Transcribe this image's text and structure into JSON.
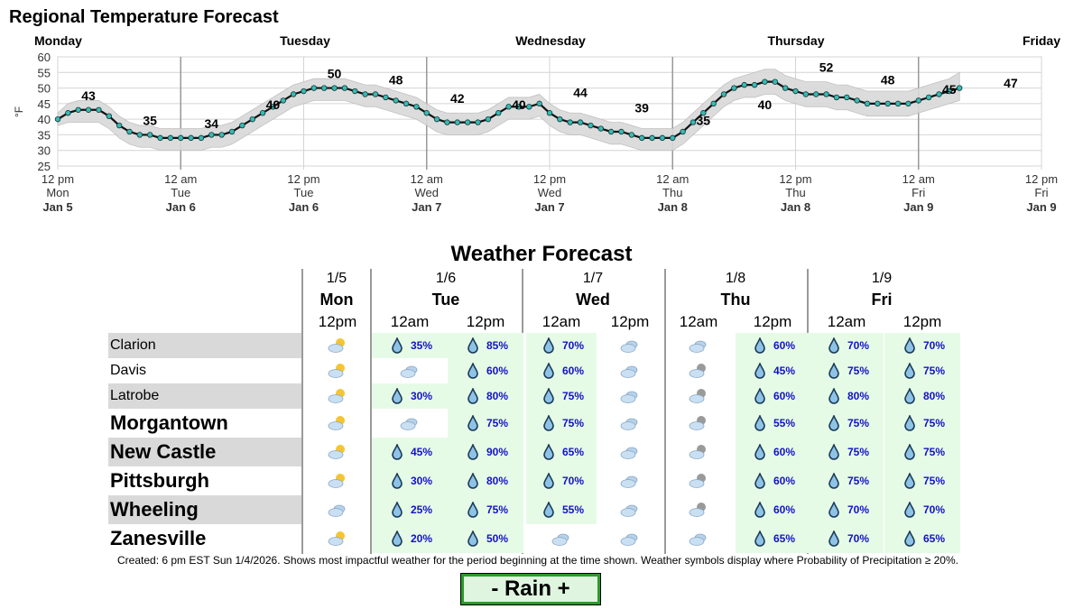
{
  "colors": {
    "band": "#d9d9d9",
    "line": "#111111",
    "point": "#3bb9b4",
    "green_cell": "#e6fbe6",
    "grey_row": "#d9d9d9",
    "pop_text": "#1212c8",
    "legend_border": "#2b9a2b"
  },
  "chart_data": {
    "type": "line",
    "title": "Regional Temperature Forecast",
    "ylabel": "°F",
    "ylim": [
      25,
      60
    ],
    "yticks": [
      25,
      30,
      35,
      40,
      45,
      50,
      55,
      60
    ],
    "grid": true,
    "day_labels": [
      "Monday",
      "Tuesday",
      "Wednesday",
      "Thursday",
      "Friday"
    ],
    "x_ticks": [
      {
        "hours": 0,
        "time": "12 pm",
        "day": "Mon",
        "date": "Jan 5"
      },
      {
        "hours": 12,
        "time": "12 am",
        "day": "Tue",
        "date": "Jan 6"
      },
      {
        "hours": 24,
        "time": "12 pm",
        "day": "Tue",
        "date": "Jan 6"
      },
      {
        "hours": 36,
        "time": "12 am",
        "day": "Wed",
        "date": "Jan 7"
      },
      {
        "hours": 48,
        "time": "12 pm",
        "day": "Wed",
        "date": "Jan 7"
      },
      {
        "hours": 60,
        "time": "12 am",
        "day": "Thu",
        "date": "Jan 8"
      },
      {
        "hours": 72,
        "time": "12 pm",
        "day": "Thu",
        "date": "Jan 8"
      },
      {
        "hours": 84,
        "time": "12 am",
        "day": "Fri",
        "date": "Jan 9"
      },
      {
        "hours": 96,
        "time": "12 pm",
        "day": "Fri",
        "date": "Jan 9"
      }
    ],
    "series": [
      {
        "values": [
          40,
          42,
          43,
          43,
          43,
          41,
          38,
          36,
          35,
          35,
          34,
          34,
          34,
          34,
          34,
          35,
          35,
          36,
          38,
          40,
          42,
          44,
          46,
          48,
          49,
          50,
          50,
          50,
          50,
          49,
          48,
          48,
          47,
          46,
          45,
          44,
          42,
          40,
          39,
          39,
          39,
          39,
          40,
          42,
          44,
          44,
          44,
          45,
          42,
          40,
          39,
          39,
          38,
          37,
          36,
          36,
          35,
          34,
          34,
          34,
          34,
          36,
          39,
          42,
          45,
          48,
          50,
          51,
          51,
          52,
          52,
          50,
          49,
          48,
          48,
          48,
          47,
          47,
          46,
          45,
          45,
          45,
          45,
          45,
          46,
          47,
          48,
          49,
          50
        ]
      }
    ],
    "band_upper": [
      42,
      45,
      46,
      46,
      46,
      44,
      41,
      39,
      38,
      38,
      37,
      37,
      37,
      37,
      37,
      38,
      38,
      39,
      41,
      43,
      45,
      47,
      49,
      51,
      52,
      53,
      53,
      53,
      53,
      52,
      51,
      51,
      50,
      49,
      48,
      47,
      45,
      43,
      42,
      42,
      42,
      42,
      43,
      45,
      47,
      47,
      47,
      48,
      45,
      43,
      42,
      42,
      41,
      40,
      39,
      39,
      38,
      37,
      37,
      37,
      37,
      39,
      42,
      45,
      48,
      51,
      53,
      54,
      55,
      56,
      56,
      54,
      53,
      52,
      52,
      52,
      51,
      51,
      50,
      49,
      49,
      49,
      49,
      49,
      50,
      51,
      52,
      53,
      55
    ],
    "band_lower": [
      38,
      39,
      39,
      39,
      39,
      37,
      34,
      32,
      31,
      31,
      30,
      30,
      30,
      30,
      30,
      31,
      31,
      32,
      34,
      36,
      38,
      40,
      42,
      44,
      45,
      46,
      46,
      46,
      46,
      45,
      44,
      44,
      43,
      42,
      41,
      40,
      38,
      36,
      35,
      35,
      35,
      35,
      36,
      38,
      40,
      40,
      40,
      41,
      38,
      36,
      35,
      35,
      34,
      33,
      32,
      32,
      31,
      30,
      30,
      30,
      30,
      32,
      35,
      38,
      41,
      44,
      46,
      47,
      47,
      48,
      48,
      46,
      45,
      44,
      44,
      44,
      43,
      43,
      42,
      41,
      41,
      41,
      41,
      41,
      42,
      43,
      44,
      45,
      46
    ],
    "annotations": [
      43,
      35,
      34,
      40,
      50,
      48,
      42,
      40,
      44,
      39,
      35,
      40,
      52,
      48,
      45,
      47
    ],
    "annotation_hours": [
      3,
      9,
      15,
      21,
      27,
      33,
      39,
      45,
      51,
      57,
      63,
      69,
      75,
      81,
      87,
      93
    ]
  },
  "forecast": {
    "title": "Weather Forecast",
    "days": [
      {
        "date": "1/5",
        "name": "Mon"
      },
      {
        "date": "1/6",
        "name": "Tue"
      },
      {
        "date": "1/7",
        "name": "Wed"
      },
      {
        "date": "1/8",
        "name": "Thu"
      },
      {
        "date": "1/9",
        "name": "Fri"
      }
    ],
    "times": [
      "12pm",
      "12am",
      "12pm",
      "12am",
      "12pm",
      "12am",
      "12pm",
      "12am",
      "12pm"
    ],
    "rows": [
      {
        "city": "Clarion",
        "cells": [
          {
            "icon": "sun-cloud"
          },
          {
            "icon": "rain",
            "pop": "35%"
          },
          {
            "icon": "rain",
            "pop": "85%"
          },
          {
            "icon": "rain",
            "pop": "70%"
          },
          {
            "icon": "cloud"
          },
          {
            "icon": "cloud"
          },
          {
            "icon": "rain",
            "pop": "60%"
          },
          {
            "icon": "rain",
            "pop": "70%"
          },
          {
            "icon": "rain",
            "pop": "70%"
          }
        ]
      },
      {
        "city": "Davis",
        "cells": [
          {
            "icon": "sun-cloud"
          },
          {
            "icon": "cloud"
          },
          {
            "icon": "rain",
            "pop": "60%"
          },
          {
            "icon": "rain",
            "pop": "60%"
          },
          {
            "icon": "cloud"
          },
          {
            "icon": "moon-cloud"
          },
          {
            "icon": "rain",
            "pop": "45%"
          },
          {
            "icon": "rain",
            "pop": "75%"
          },
          {
            "icon": "rain",
            "pop": "75%"
          }
        ]
      },
      {
        "city": "Latrobe",
        "cells": [
          {
            "icon": "sun-cloud"
          },
          {
            "icon": "rain",
            "pop": "30%"
          },
          {
            "icon": "rain",
            "pop": "80%"
          },
          {
            "icon": "rain",
            "pop": "75%"
          },
          {
            "icon": "cloud"
          },
          {
            "icon": "moon-cloud"
          },
          {
            "icon": "rain",
            "pop": "60%"
          },
          {
            "icon": "rain",
            "pop": "80%"
          },
          {
            "icon": "rain",
            "pop": "80%"
          }
        ]
      },
      {
        "city": "Morgantown",
        "cells": [
          {
            "icon": "sun-cloud"
          },
          {
            "icon": "cloud"
          },
          {
            "icon": "rain",
            "pop": "75%"
          },
          {
            "icon": "rain",
            "pop": "75%"
          },
          {
            "icon": "cloud"
          },
          {
            "icon": "moon-cloud"
          },
          {
            "icon": "rain",
            "pop": "55%"
          },
          {
            "icon": "rain",
            "pop": "75%"
          },
          {
            "icon": "rain",
            "pop": "75%"
          }
        ]
      },
      {
        "city": "New Castle",
        "cells": [
          {
            "icon": "sun-cloud"
          },
          {
            "icon": "rain",
            "pop": "45%"
          },
          {
            "icon": "rain",
            "pop": "90%"
          },
          {
            "icon": "rain",
            "pop": "65%"
          },
          {
            "icon": "cloud"
          },
          {
            "icon": "moon-cloud"
          },
          {
            "icon": "rain",
            "pop": "60%"
          },
          {
            "icon": "rain",
            "pop": "75%"
          },
          {
            "icon": "rain",
            "pop": "75%"
          }
        ]
      },
      {
        "city": "Pittsburgh",
        "cells": [
          {
            "icon": "sun-cloud"
          },
          {
            "icon": "rain",
            "pop": "30%"
          },
          {
            "icon": "rain",
            "pop": "80%"
          },
          {
            "icon": "rain",
            "pop": "70%"
          },
          {
            "icon": "cloud"
          },
          {
            "icon": "moon-cloud"
          },
          {
            "icon": "rain",
            "pop": "60%"
          },
          {
            "icon": "rain",
            "pop": "75%"
          },
          {
            "icon": "rain",
            "pop": "75%"
          }
        ]
      },
      {
        "city": "Wheeling",
        "cells": [
          {
            "icon": "cloud"
          },
          {
            "icon": "rain",
            "pop": "25%"
          },
          {
            "icon": "rain",
            "pop": "75%"
          },
          {
            "icon": "rain",
            "pop": "55%"
          },
          {
            "icon": "cloud"
          },
          {
            "icon": "moon-cloud"
          },
          {
            "icon": "rain",
            "pop": "60%"
          },
          {
            "icon": "rain",
            "pop": "70%"
          },
          {
            "icon": "rain",
            "pop": "70%"
          }
        ]
      },
      {
        "city": "Zanesville",
        "cells": [
          {
            "icon": "sun-cloud"
          },
          {
            "icon": "rain",
            "pop": "20%"
          },
          {
            "icon": "rain",
            "pop": "50%"
          },
          {
            "icon": "cloud"
          },
          {
            "icon": "cloud"
          },
          {
            "icon": "cloud"
          },
          {
            "icon": "rain",
            "pop": "65%"
          },
          {
            "icon": "rain",
            "pop": "70%"
          },
          {
            "icon": "rain",
            "pop": "65%"
          }
        ]
      }
    ]
  },
  "footnote": "Created: 6 pm EST Sun 1/4/2026. Shows most impactful weather for the period beginning at the time shown. Weather symbols display where Probability of Precipitation ≥ 20%.",
  "legend_label": "- Rain +"
}
